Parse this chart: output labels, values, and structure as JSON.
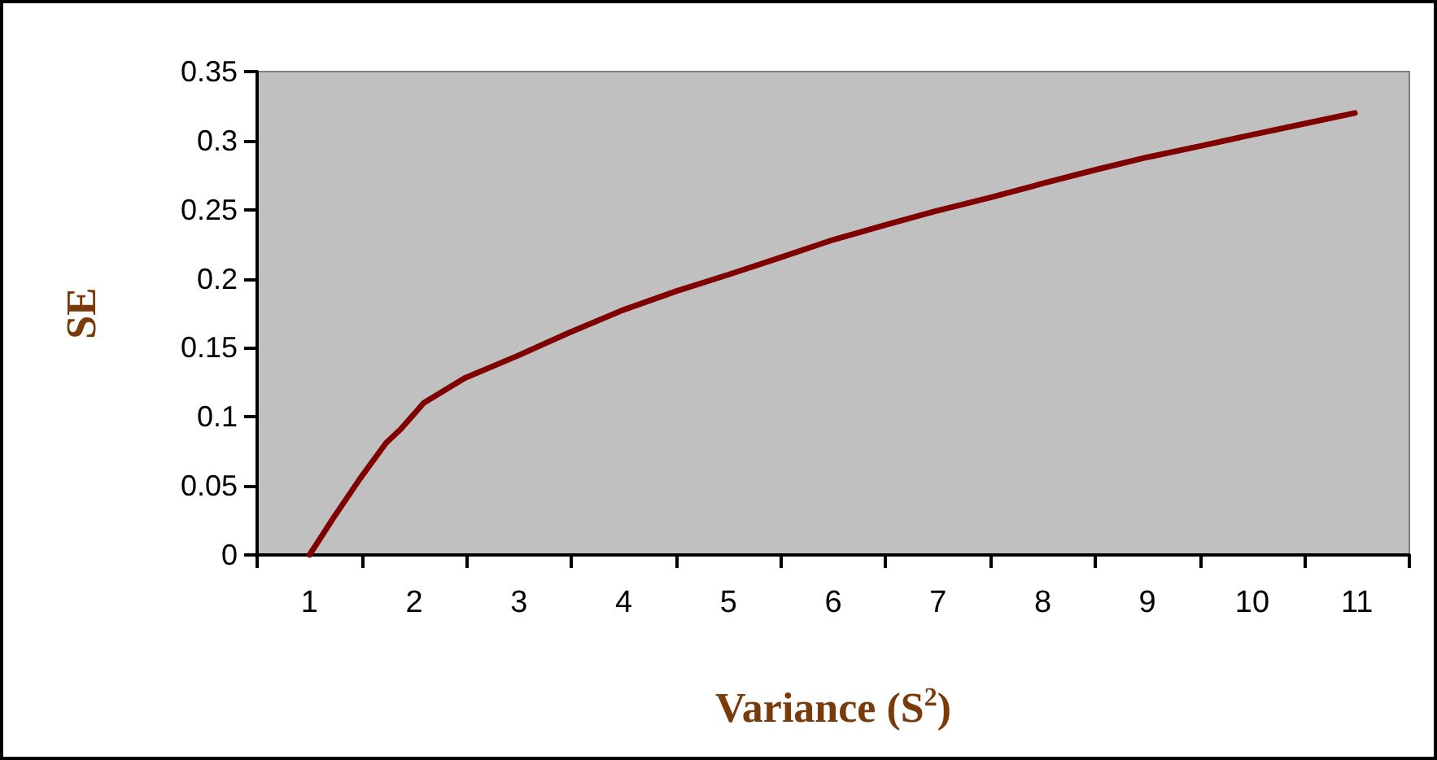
{
  "chart_data": {
    "type": "line",
    "xlabel": "Variance (S$^{2}$)",
    "ylabel": "SE",
    "x": [
      1,
      1.23,
      1.48,
      1.73,
      1.87,
      2.09,
      2.48,
      2.98,
      3.48,
      3.98,
      4.5,
      5,
      5.48,
      5.99,
      6.5,
      6.98,
      7.51,
      8,
      8.51,
      9,
      9.5,
      9.98,
      10.48,
      10.98
    ],
    "series": [
      {
        "color": "#800000",
        "values": [
          0,
          0.027,
          0.055,
          0.081,
          0.091,
          0.11,
          0.128,
          0.144,
          0.161,
          0.177,
          0.191,
          0.203,
          0.215,
          0.228,
          0.239,
          0.249,
          0.259,
          0.269,
          0.279,
          0.288,
          0.296,
          0.304,
          0.312,
          0.32
        ]
      }
    ],
    "xlim": [
      0.5,
      11.5
    ],
    "xticks": [
      {
        "value": 0.5,
        "label": null
      },
      1,
      {
        "value": 1.5,
        "label": null
      },
      2,
      {
        "value": 2.5,
        "label": null
      },
      3,
      {
        "value": 3.5,
        "label": null
      },
      4,
      {
        "value": 4.5,
        "label": null
      },
      5,
      {
        "value": 5.5,
        "label": null
      },
      6,
      {
        "value": 6.5,
        "label": null
      },
      7,
      {
        "value": 7.5,
        "label": null
      },
      8,
      {
        "value": 8.5,
        "label": null
      },
      9,
      {
        "value": 9.5,
        "label": null
      },
      10,
      {
        "value": 10.5,
        "label": null
      },
      11,
      {
        "value": 11.5,
        "label": null
      }
    ],
    "ylim": [
      0,
      0.35
    ],
    "yticks": [
      0,
      0.05,
      0.1,
      0.15,
      0.2,
      0.25,
      0.3,
      0.35
    ],
    "grid": false,
    "line_style": "solid"
  }
}
